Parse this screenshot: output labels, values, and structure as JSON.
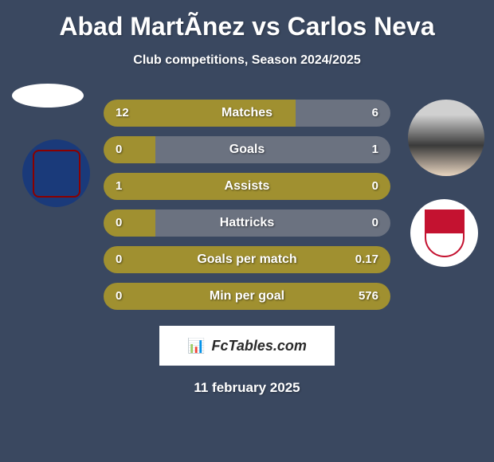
{
  "title": "Abad MartÃ­nez vs Carlos Neva",
  "subtitle": "Club competitions, Season 2024/2025",
  "date": "11 february 2025",
  "watermark": "FcTables.com",
  "colors": {
    "background": "#3a4860",
    "bar_filled": "#a09030",
    "bar_empty": "#6b7280",
    "text": "#ffffff"
  },
  "stats": [
    {
      "label": "Matches",
      "left_value": "12",
      "right_value": "6",
      "left_pct": 67
    },
    {
      "label": "Goals",
      "left_value": "0",
      "right_value": "1",
      "left_pct": 18
    },
    {
      "label": "Assists",
      "left_value": "1",
      "right_value": "0",
      "left_pct": 100
    },
    {
      "label": "Hattricks",
      "left_value": "0",
      "right_value": "0",
      "left_pct": 18
    },
    {
      "label": "Goals per match",
      "left_value": "0",
      "right_value": "0.17",
      "left_pct": 100
    },
    {
      "label": "Min per goal",
      "left_value": "0",
      "right_value": "576",
      "left_pct": 100
    }
  ],
  "player_left": {
    "name": "Abad MartÃ­nez",
    "badge": "SD Huesca"
  },
  "player_right": {
    "name": "Carlos Neva",
    "badge": "Granada"
  }
}
